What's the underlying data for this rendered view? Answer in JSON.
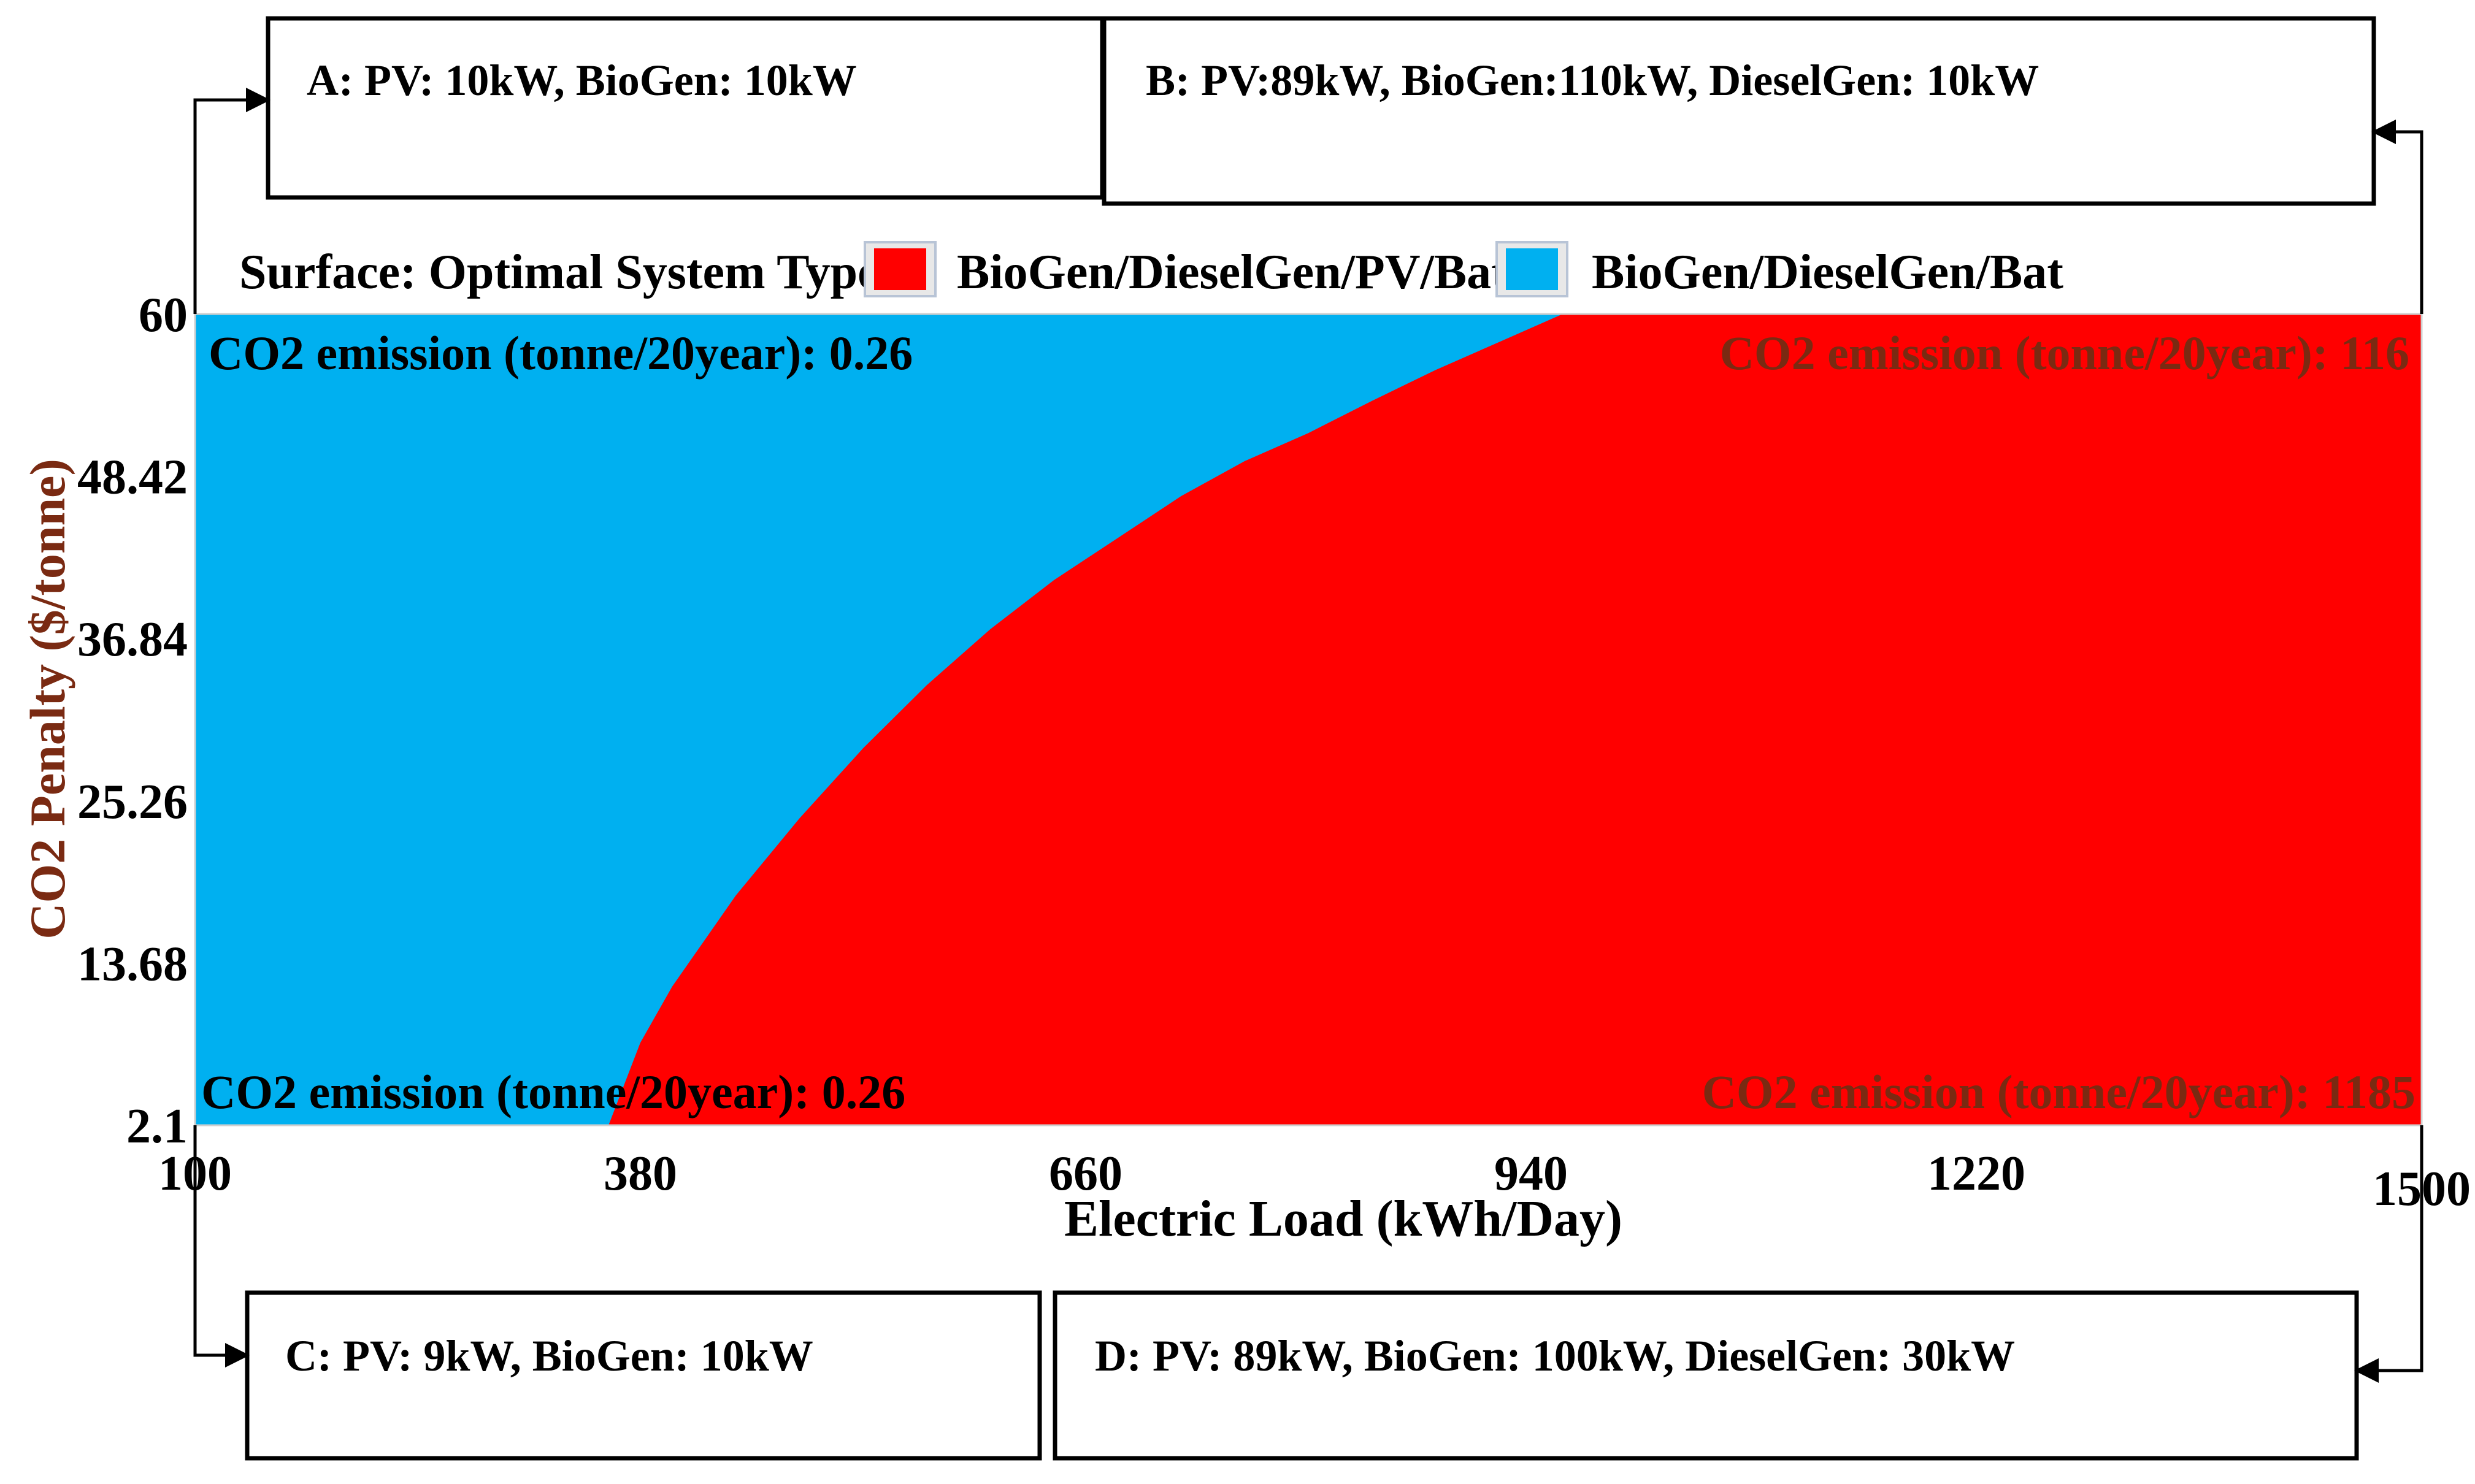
{
  "boxes": {
    "A": "A: PV: 10kW, BioGen: 10kW",
    "B": "B: PV:89kW, BioGen:110kW, DieselGen: 10kW",
    "C": "C: PV: 9kW, BioGen: 10kW",
    "D": "D: PV: 89kW, BioGen: 100kW, DieselGen: 30kW"
  },
  "colors": {
    "red": "#ff0000",
    "blue": "#00b0f0",
    "axis_title": "#000000",
    "ylabel": "#7a2a12"
  },
  "chart_data": {
    "type": "heatmap",
    "title": "Surface: Optimal System Type",
    "xlabel": "Electric Load (kWh/Day)",
    "ylabel": "CO2 Penalty ($/tonne)",
    "xlim": [
      100,
      1500
    ],
    "ylim": [
      2.1,
      60
    ],
    "x_ticks": [
      "100",
      "380",
      "660",
      "940",
      "1220",
      "1500"
    ],
    "y_ticks": [
      "2.1",
      "13.68",
      "25.26",
      "36.84",
      "48.42",
      "60"
    ],
    "legend": [
      {
        "name": "BioGen/DieselGen/PV/Bat",
        "color": "#ff0000"
      },
      {
        "name": "BioGen/DieselGen/Bat",
        "color": "#00b0f0"
      }
    ],
    "boundary": {
      "description": "Boundary between BioGen/DieselGen/Bat (left/top) and BioGen/DieselGen/PV/Bat (right/bottom)",
      "x": [
        360,
        380,
        400,
        440,
        480,
        520,
        560,
        600,
        640,
        680,
        720,
        760,
        800,
        840,
        880,
        920,
        960
      ],
      "y": [
        2.1,
        8.0,
        12.0,
        18.5,
        24.0,
        29.0,
        33.5,
        37.5,
        41.0,
        44.0,
        47.0,
        49.5,
        51.5,
        53.8,
        56.0,
        58.0,
        60.0
      ]
    },
    "annotations": [
      {
        "text": "CO2 emission (tonne/20year): 0.26",
        "corner": "top-left",
        "color": "#000000"
      },
      {
        "text": "CO2 emission (tonne/20year): 116",
        "corner": "top-right",
        "color": "#7a2a12"
      },
      {
        "text": "CO2 emission (tonne/20year): 0.26",
        "corner": "bottom-left",
        "color": "#000000"
      },
      {
        "text": "CO2 emission (tonne/20year): 1185",
        "corner": "bottom-right",
        "color": "#7a2a12"
      }
    ]
  }
}
